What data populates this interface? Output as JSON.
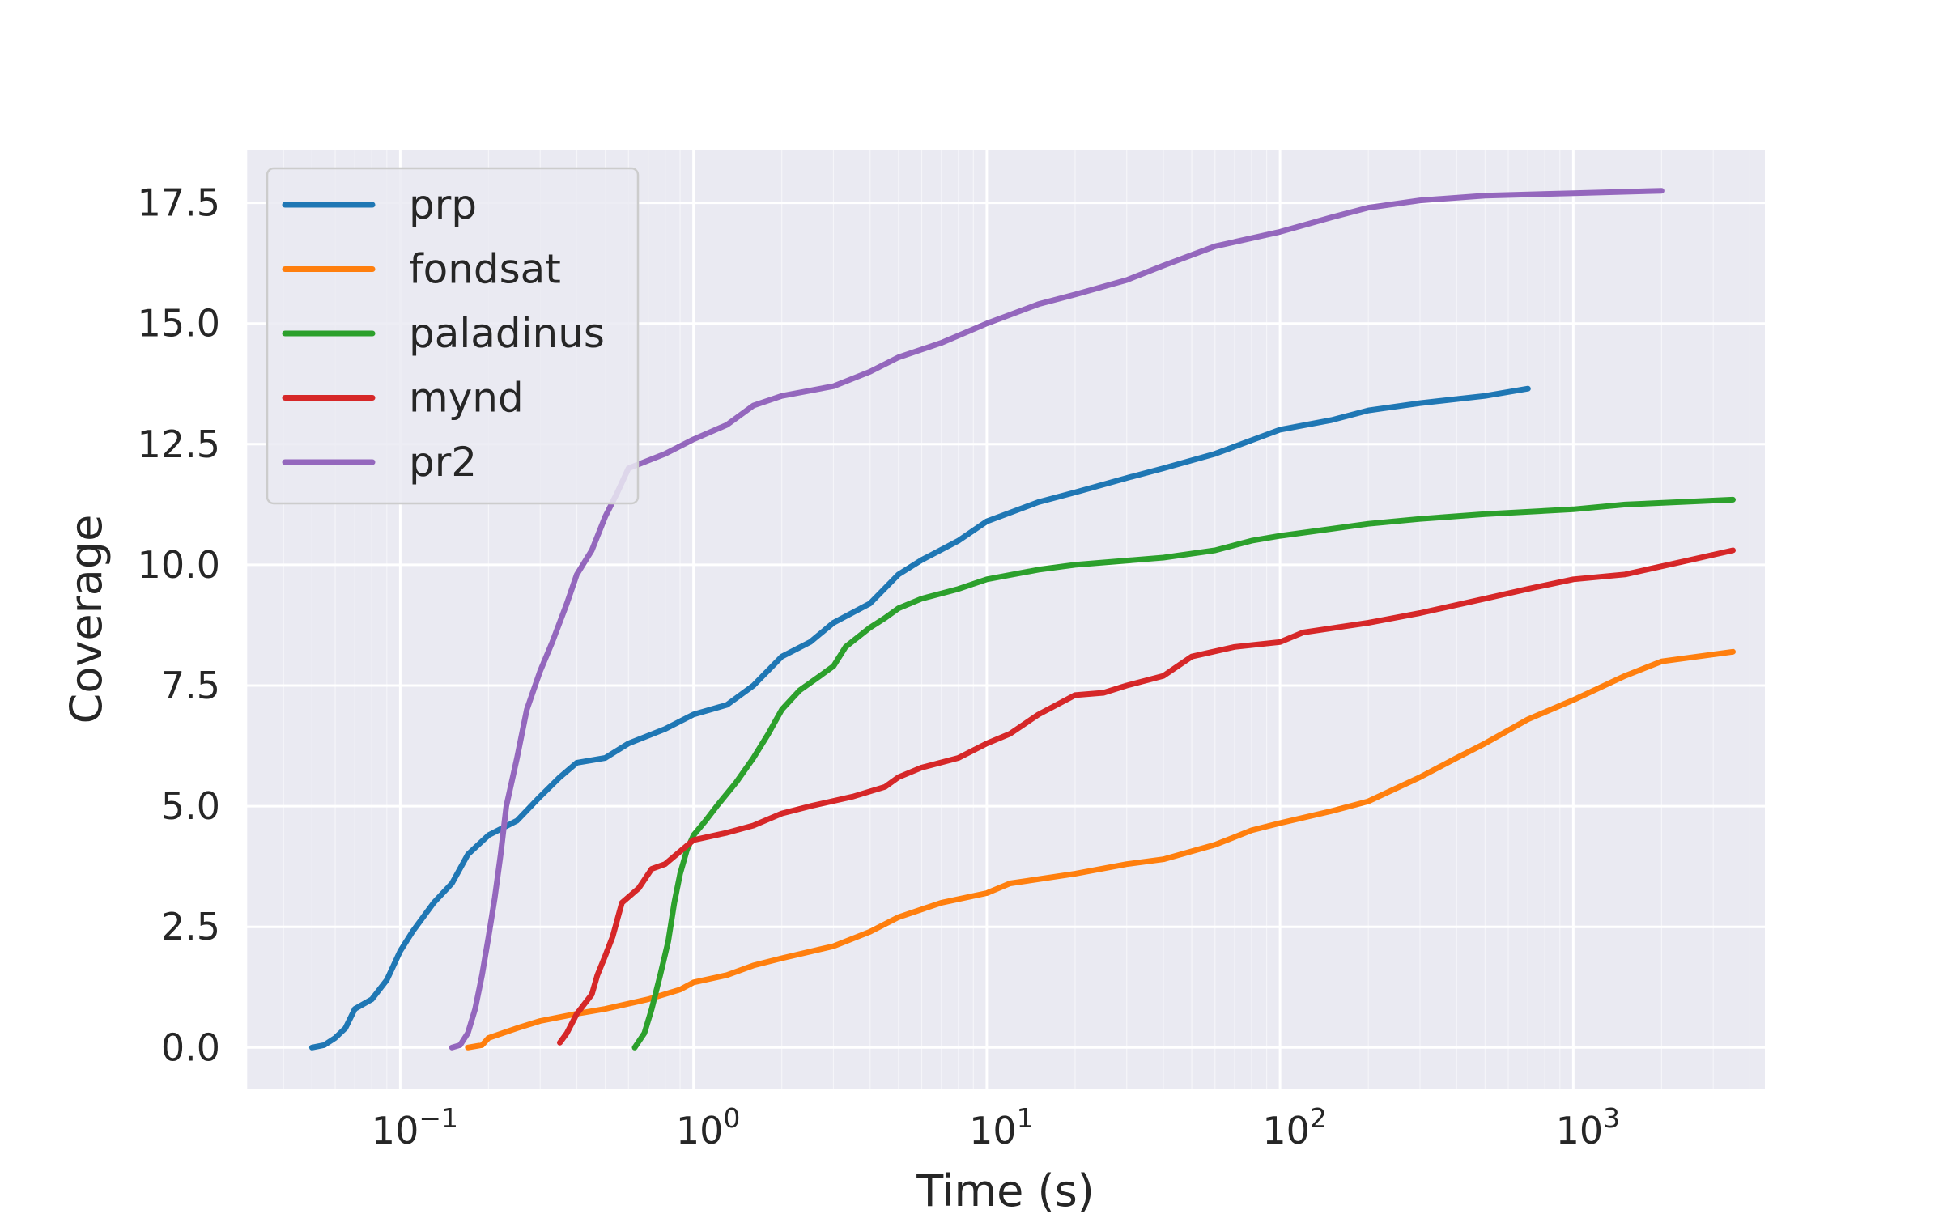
{
  "chart_data": {
    "type": "line",
    "title": "",
    "xlabel": "Time (s)",
    "ylabel": "Coverage",
    "xscale": "log",
    "xlim": [
      0.03,
      4500
    ],
    "ylim": [
      -0.85,
      18.6
    ],
    "xticks": [
      {
        "value": 0.1,
        "mantissa": "10",
        "exponent": "−1"
      },
      {
        "value": 1,
        "mantissa": "10",
        "exponent": "0"
      },
      {
        "value": 10,
        "mantissa": "10",
        "exponent": "1"
      },
      {
        "value": 100,
        "mantissa": "10",
        "exponent": "2"
      },
      {
        "value": 1000,
        "mantissa": "10",
        "exponent": "3"
      }
    ],
    "yticks": [
      "0.0",
      "2.5",
      "5.0",
      "7.5",
      "10.0",
      "12.5",
      "15.0",
      "17.5"
    ],
    "grid": true,
    "legend_position": "top-left",
    "background": "#eaeaf2",
    "series": [
      {
        "name": "prp",
        "color": "#1f77b4",
        "points": [
          [
            0.05,
            0
          ],
          [
            0.055,
            0.05
          ],
          [
            0.06,
            0.2
          ],
          [
            0.065,
            0.4
          ],
          [
            0.07,
            0.8
          ],
          [
            0.08,
            1.0
          ],
          [
            0.09,
            1.4
          ],
          [
            0.1,
            2.0
          ],
          [
            0.11,
            2.4
          ],
          [
            0.13,
            3.0
          ],
          [
            0.15,
            3.4
          ],
          [
            0.17,
            4.0
          ],
          [
            0.2,
            4.4
          ],
          [
            0.25,
            4.7
          ],
          [
            0.3,
            5.2
          ],
          [
            0.35,
            5.6
          ],
          [
            0.4,
            5.9
          ],
          [
            0.5,
            6.0
          ],
          [
            0.6,
            6.3
          ],
          [
            0.8,
            6.6
          ],
          [
            1.0,
            6.9
          ],
          [
            1.3,
            7.1
          ],
          [
            1.6,
            7.5
          ],
          [
            2.0,
            8.1
          ],
          [
            2.5,
            8.4
          ],
          [
            3.0,
            8.8
          ],
          [
            4.0,
            9.2
          ],
          [
            5.0,
            9.8
          ],
          [
            6.0,
            10.1
          ],
          [
            8.0,
            10.5
          ],
          [
            10,
            10.9
          ],
          [
            15,
            11.3
          ],
          [
            20,
            11.5
          ],
          [
            30,
            11.8
          ],
          [
            40,
            12.0
          ],
          [
            60,
            12.3
          ],
          [
            100,
            12.8
          ],
          [
            150,
            13.0
          ],
          [
            200,
            13.2
          ],
          [
            300,
            13.35
          ],
          [
            500,
            13.5
          ],
          [
            700,
            13.65
          ]
        ]
      },
      {
        "name": "fondsat",
        "color": "#ff7f0e",
        "points": [
          [
            0.17,
            0
          ],
          [
            0.19,
            0.05
          ],
          [
            0.2,
            0.2
          ],
          [
            0.25,
            0.4
          ],
          [
            0.3,
            0.55
          ],
          [
            0.4,
            0.7
          ],
          [
            0.5,
            0.8
          ],
          [
            0.7,
            1.0
          ],
          [
            0.9,
            1.2
          ],
          [
            1.0,
            1.35
          ],
          [
            1.3,
            1.5
          ],
          [
            1.6,
            1.7
          ],
          [
            2.0,
            1.85
          ],
          [
            3.0,
            2.1
          ],
          [
            4.0,
            2.4
          ],
          [
            5.0,
            2.7
          ],
          [
            7.0,
            3.0
          ],
          [
            10,
            3.2
          ],
          [
            12,
            3.4
          ],
          [
            20,
            3.6
          ],
          [
            30,
            3.8
          ],
          [
            40,
            3.9
          ],
          [
            60,
            4.2
          ],
          [
            80,
            4.5
          ],
          [
            100,
            4.65
          ],
          [
            150,
            4.9
          ],
          [
            200,
            5.1
          ],
          [
            300,
            5.6
          ],
          [
            400,
            6.0
          ],
          [
            500,
            6.3
          ],
          [
            700,
            6.8
          ],
          [
            1000,
            7.2
          ],
          [
            1500,
            7.7
          ],
          [
            2000,
            8.0
          ],
          [
            3500,
            8.2
          ]
        ]
      },
      {
        "name": "paladinus",
        "color": "#2ca02c",
        "points": [
          [
            0.63,
            0
          ],
          [
            0.68,
            0.3
          ],
          [
            0.72,
            0.8
          ],
          [
            0.77,
            1.5
          ],
          [
            0.82,
            2.2
          ],
          [
            0.86,
            3.0
          ],
          [
            0.9,
            3.6
          ],
          [
            0.95,
            4.1
          ],
          [
            1.0,
            4.4
          ],
          [
            1.1,
            4.7
          ],
          [
            1.2,
            5.0
          ],
          [
            1.4,
            5.5
          ],
          [
            1.6,
            6.0
          ],
          [
            1.8,
            6.5
          ],
          [
            2.0,
            7.0
          ],
          [
            2.3,
            7.4
          ],
          [
            2.7,
            7.7
          ],
          [
            3.0,
            7.9
          ],
          [
            3.3,
            8.3
          ],
          [
            4.0,
            8.7
          ],
          [
            4.5,
            8.9
          ],
          [
            5.0,
            9.1
          ],
          [
            6.0,
            9.3
          ],
          [
            8.0,
            9.5
          ],
          [
            10,
            9.7
          ],
          [
            15,
            9.9
          ],
          [
            20,
            10.0
          ],
          [
            40,
            10.15
          ],
          [
            60,
            10.3
          ],
          [
            80,
            10.5
          ],
          [
            100,
            10.6
          ],
          [
            200,
            10.85
          ],
          [
            300,
            10.95
          ],
          [
            500,
            11.05
          ],
          [
            1000,
            11.15
          ],
          [
            1500,
            11.25
          ],
          [
            3500,
            11.35
          ]
        ]
      },
      {
        "name": "mynd",
        "color": "#d62728",
        "points": [
          [
            0.35,
            0.1
          ],
          [
            0.37,
            0.3
          ],
          [
            0.4,
            0.7
          ],
          [
            0.45,
            1.1
          ],
          [
            0.47,
            1.5
          ],
          [
            0.5,
            1.9
          ],
          [
            0.53,
            2.3
          ],
          [
            0.57,
            3.0
          ],
          [
            0.65,
            3.3
          ],
          [
            0.72,
            3.7
          ],
          [
            0.8,
            3.8
          ],
          [
            1.0,
            4.3
          ],
          [
            1.3,
            4.45
          ],
          [
            1.6,
            4.6
          ],
          [
            2.0,
            4.85
          ],
          [
            2.5,
            5.0
          ],
          [
            3.5,
            5.2
          ],
          [
            4.5,
            5.4
          ],
          [
            5.0,
            5.6
          ],
          [
            6.0,
            5.8
          ],
          [
            8.0,
            6.0
          ],
          [
            10,
            6.3
          ],
          [
            12,
            6.5
          ],
          [
            15,
            6.9
          ],
          [
            20,
            7.3
          ],
          [
            25,
            7.35
          ],
          [
            30,
            7.5
          ],
          [
            40,
            7.7
          ],
          [
            50,
            8.1
          ],
          [
            70,
            8.3
          ],
          [
            100,
            8.4
          ],
          [
            120,
            8.6
          ],
          [
            200,
            8.8
          ],
          [
            300,
            9.0
          ],
          [
            500,
            9.3
          ],
          [
            700,
            9.5
          ],
          [
            1000,
            9.7
          ],
          [
            1500,
            9.8
          ],
          [
            2500,
            10.1
          ],
          [
            3500,
            10.3
          ]
        ]
      },
      {
        "name": "pr2",
        "color": "#9467bd",
        "points": [
          [
            0.15,
            0
          ],
          [
            0.16,
            0.05
          ],
          [
            0.17,
            0.3
          ],
          [
            0.18,
            0.8
          ],
          [
            0.19,
            1.5
          ],
          [
            0.2,
            2.3
          ],
          [
            0.21,
            3.1
          ],
          [
            0.22,
            4.0
          ],
          [
            0.23,
            5.0
          ],
          [
            0.25,
            6.0
          ],
          [
            0.27,
            7.0
          ],
          [
            0.3,
            7.8
          ],
          [
            0.33,
            8.4
          ],
          [
            0.37,
            9.2
          ],
          [
            0.4,
            9.8
          ],
          [
            0.45,
            10.3
          ],
          [
            0.5,
            11.0
          ],
          [
            0.55,
            11.5
          ],
          [
            0.6,
            12.0
          ],
          [
            0.8,
            12.3
          ],
          [
            1.0,
            12.6
          ],
          [
            1.3,
            12.9
          ],
          [
            1.6,
            13.3
          ],
          [
            2.0,
            13.5
          ],
          [
            3.0,
            13.7
          ],
          [
            4.0,
            14.0
          ],
          [
            5.0,
            14.3
          ],
          [
            7.0,
            14.6
          ],
          [
            10,
            15.0
          ],
          [
            15,
            15.4
          ],
          [
            20,
            15.6
          ],
          [
            30,
            15.9
          ],
          [
            40,
            16.2
          ],
          [
            60,
            16.6
          ],
          [
            100,
            16.9
          ],
          [
            150,
            17.2
          ],
          [
            200,
            17.4
          ],
          [
            300,
            17.55
          ],
          [
            500,
            17.65
          ],
          [
            1000,
            17.7
          ],
          [
            2000,
            17.75
          ]
        ]
      }
    ]
  }
}
